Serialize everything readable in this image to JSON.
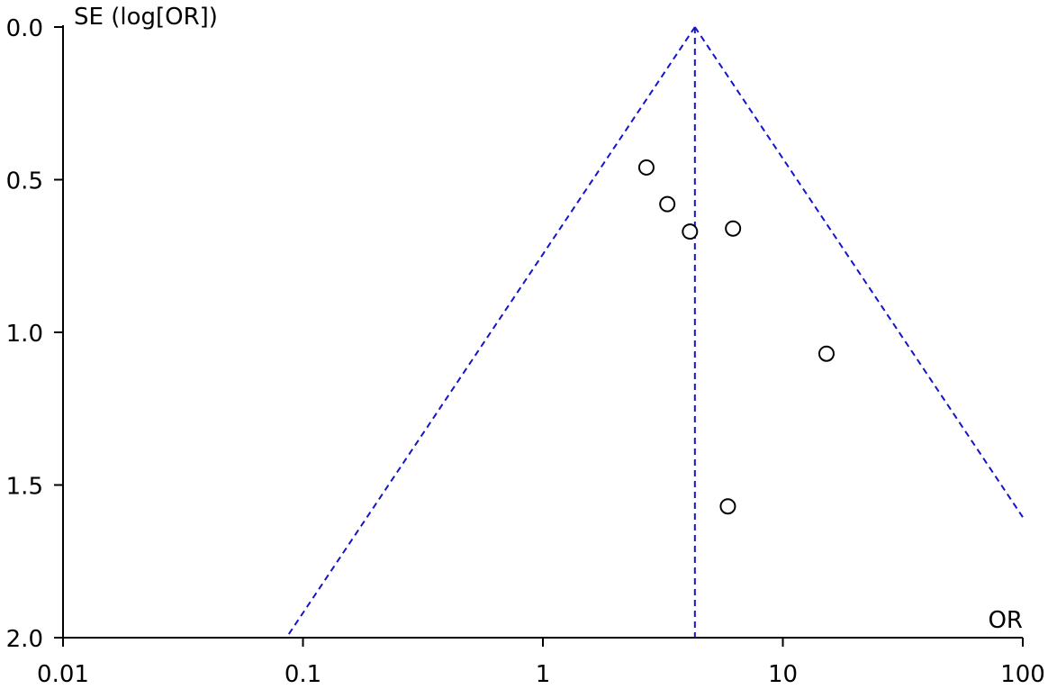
{
  "chart_data": {
    "type": "scatter",
    "title": "",
    "xlabel": "OR",
    "ylabel": "SE (log[OR])",
    "x_scale": "log",
    "y_inverted": true,
    "xlim": [
      0.01,
      100
    ],
    "ylim": [
      0,
      2
    ],
    "x_ticks": [
      "0.01",
      "0.1",
      "1",
      "10",
      "100"
    ],
    "x_tick_values": [
      0.01,
      0.1,
      1,
      10,
      100
    ],
    "y_ticks": [
      "0.0",
      "0.5",
      "1.0",
      "1.5",
      "2.0"
    ],
    "y_tick_values": [
      0,
      0.5,
      1,
      1.5,
      2
    ],
    "pooled_or": 4.3,
    "points": [
      {
        "or": 2.7,
        "se": 0.46
      },
      {
        "or": 3.3,
        "se": 0.58
      },
      {
        "or": 4.1,
        "se": 0.67
      },
      {
        "or": 6.2,
        "se": 0.66
      },
      {
        "or": 15.2,
        "se": 1.07
      },
      {
        "or": 5.9,
        "se": 1.57
      }
    ],
    "grid": false,
    "legend": "none",
    "colors": {
      "funnel": "#1414c8",
      "points": "#000000",
      "axes": "#000000"
    }
  }
}
